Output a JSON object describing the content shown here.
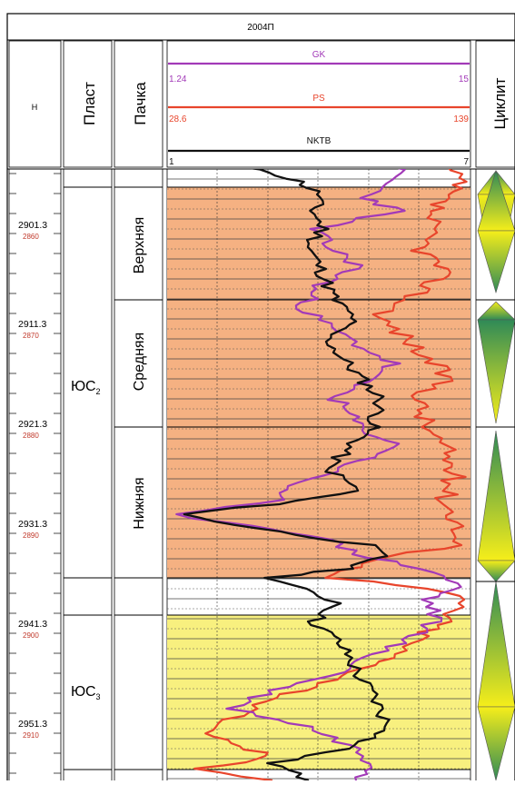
{
  "well": "2004П",
  "headers": {
    "depth": "Н",
    "plast": "Пласт",
    "pachka": "Пачка",
    "cyclite": "Циклит"
  },
  "logs": [
    {
      "name": "GK",
      "min": "1.24",
      "max": "15",
      "color": "#a23ab8"
    },
    {
      "name": "PS",
      "min": "28.6",
      "max": "139",
      "color": "#e8452c"
    },
    {
      "name": "NKTB",
      "min": "1",
      "max": "7",
      "color": "#111111"
    }
  ],
  "depths": [
    {
      "md": "2901.3",
      "tvd": "2860"
    },
    {
      "md": "2911.3",
      "tvd": "2870"
    },
    {
      "md": "2921.3",
      "tvd": "2880"
    },
    {
      "md": "2931.3",
      "tvd": "2890"
    },
    {
      "md": "2941.3",
      "tvd": "2900"
    },
    {
      "md": "2951.3",
      "tvd": "2910"
    }
  ],
  "plasts": [
    {
      "main": "ЮС",
      "sub": "2"
    },
    {
      "main": "ЮС",
      "sub": "3"
    }
  ],
  "pachki": [
    "Верхняя",
    "Средняя",
    "Нижняя"
  ],
  "colors": {
    "orange_fill": "#f5b182",
    "yellow_fill": "#f8f07f",
    "cyclite_dark": "#2f8a57",
    "cyclite_light": "#f6ee1a",
    "tvd_text": "#c0392b"
  }
}
